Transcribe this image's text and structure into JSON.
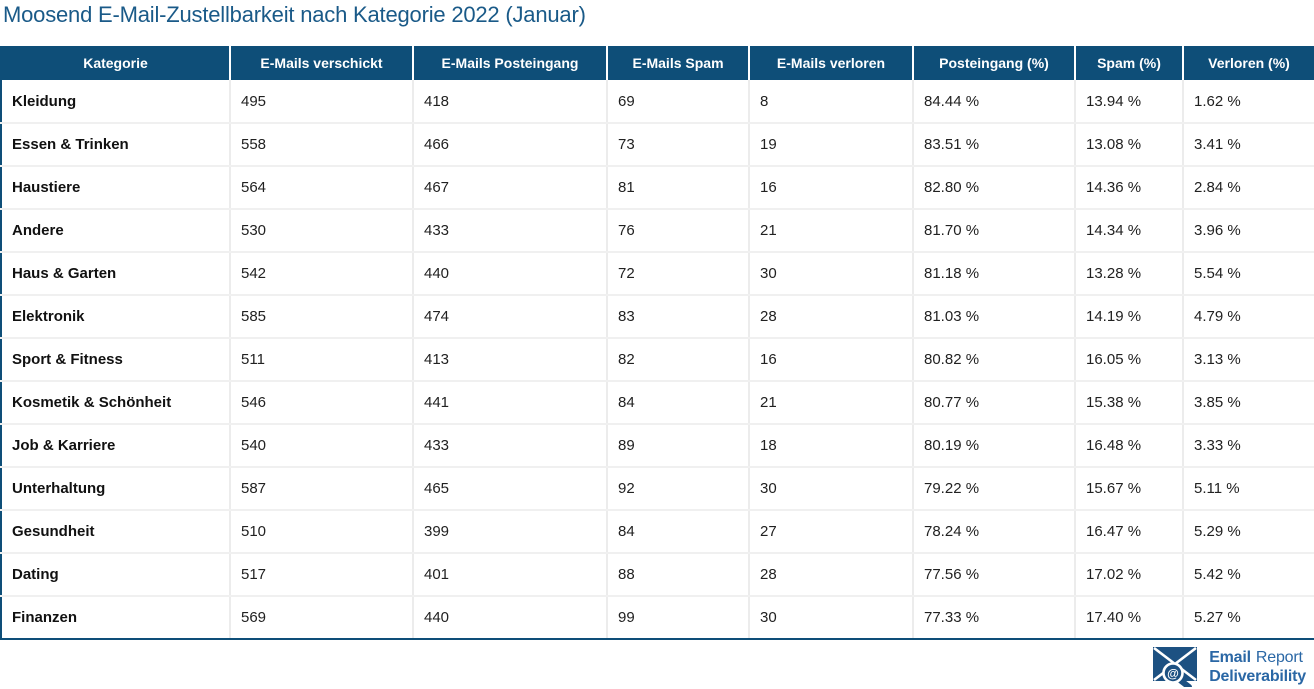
{
  "title": "Moosend E-Mail-Zustellbarkeit nach Kategorie 2022 (Januar)",
  "chart_data": {
    "type": "table",
    "title": "Moosend E-Mail-Zustellbarkeit nach Kategorie 2022 (Januar)",
    "columns": [
      "Kategorie",
      "E-Mails verschickt",
      "E-Mails Posteingang",
      "E-Mails Spam",
      "E-Mails verloren",
      "Posteingang (%)",
      "Spam (%)",
      "Verloren (%)"
    ],
    "rows": [
      [
        "Kleidung",
        "495",
        "418",
        "69",
        "8",
        "84.44 %",
        "13.94 %",
        "1.62 %"
      ],
      [
        "Essen & Trinken",
        "558",
        "466",
        "73",
        "19",
        "83.51 %",
        "13.08 %",
        "3.41 %"
      ],
      [
        "Haustiere",
        "564",
        "467",
        "81",
        "16",
        "82.80 %",
        "14.36 %",
        "2.84 %"
      ],
      [
        "Andere",
        "530",
        "433",
        "76",
        "21",
        "81.70 %",
        "14.34 %",
        "3.96 %"
      ],
      [
        "Haus & Garten",
        "542",
        "440",
        "72",
        "30",
        "81.18 %",
        "13.28 %",
        "5.54 %"
      ],
      [
        "Elektronik",
        "585",
        "474",
        "83",
        "28",
        "81.03 %",
        "14.19 %",
        "4.79 %"
      ],
      [
        "Sport & Fitness",
        "511",
        "413",
        "82",
        "16",
        "80.82 %",
        "16.05 %",
        "3.13 %"
      ],
      [
        "Kosmetik & Schönheit",
        "546",
        "441",
        "84",
        "21",
        "80.77 %",
        "15.38 %",
        "3.85 %"
      ],
      [
        "Job & Karriere",
        "540",
        "433",
        "89",
        "18",
        "80.19 %",
        "16.48 %",
        "3.33 %"
      ],
      [
        "Unterhaltung",
        "587",
        "465",
        "92",
        "30",
        "79.22 %",
        "15.67 %",
        "5.11 %"
      ],
      [
        "Gesundheit",
        "510",
        "399",
        "84",
        "27",
        "78.24 %",
        "16.47 %",
        "5.29 %"
      ],
      [
        "Dating",
        "517",
        "401",
        "88",
        "28",
        "77.56 %",
        "17.02 %",
        "5.42 %"
      ],
      [
        "Finanzen",
        "569",
        "440",
        "99",
        "30",
        "77.33 %",
        "17.40 %",
        "5.27 %"
      ]
    ]
  },
  "footer": {
    "brand_bold": "Email",
    "brand_regular": "Report",
    "brand_line2": "Deliverability",
    "logo_icon": "envelope-magnifier-at-icon"
  },
  "colors": {
    "header_bg": "#0e4e78",
    "title_color": "#1a5a88",
    "logo_blue": "#2a67a5",
    "icon_blue": "#1d5182",
    "row_sep": "#f0f0f0",
    "col_sep": "#ececec",
    "text_color": "#212121"
  }
}
